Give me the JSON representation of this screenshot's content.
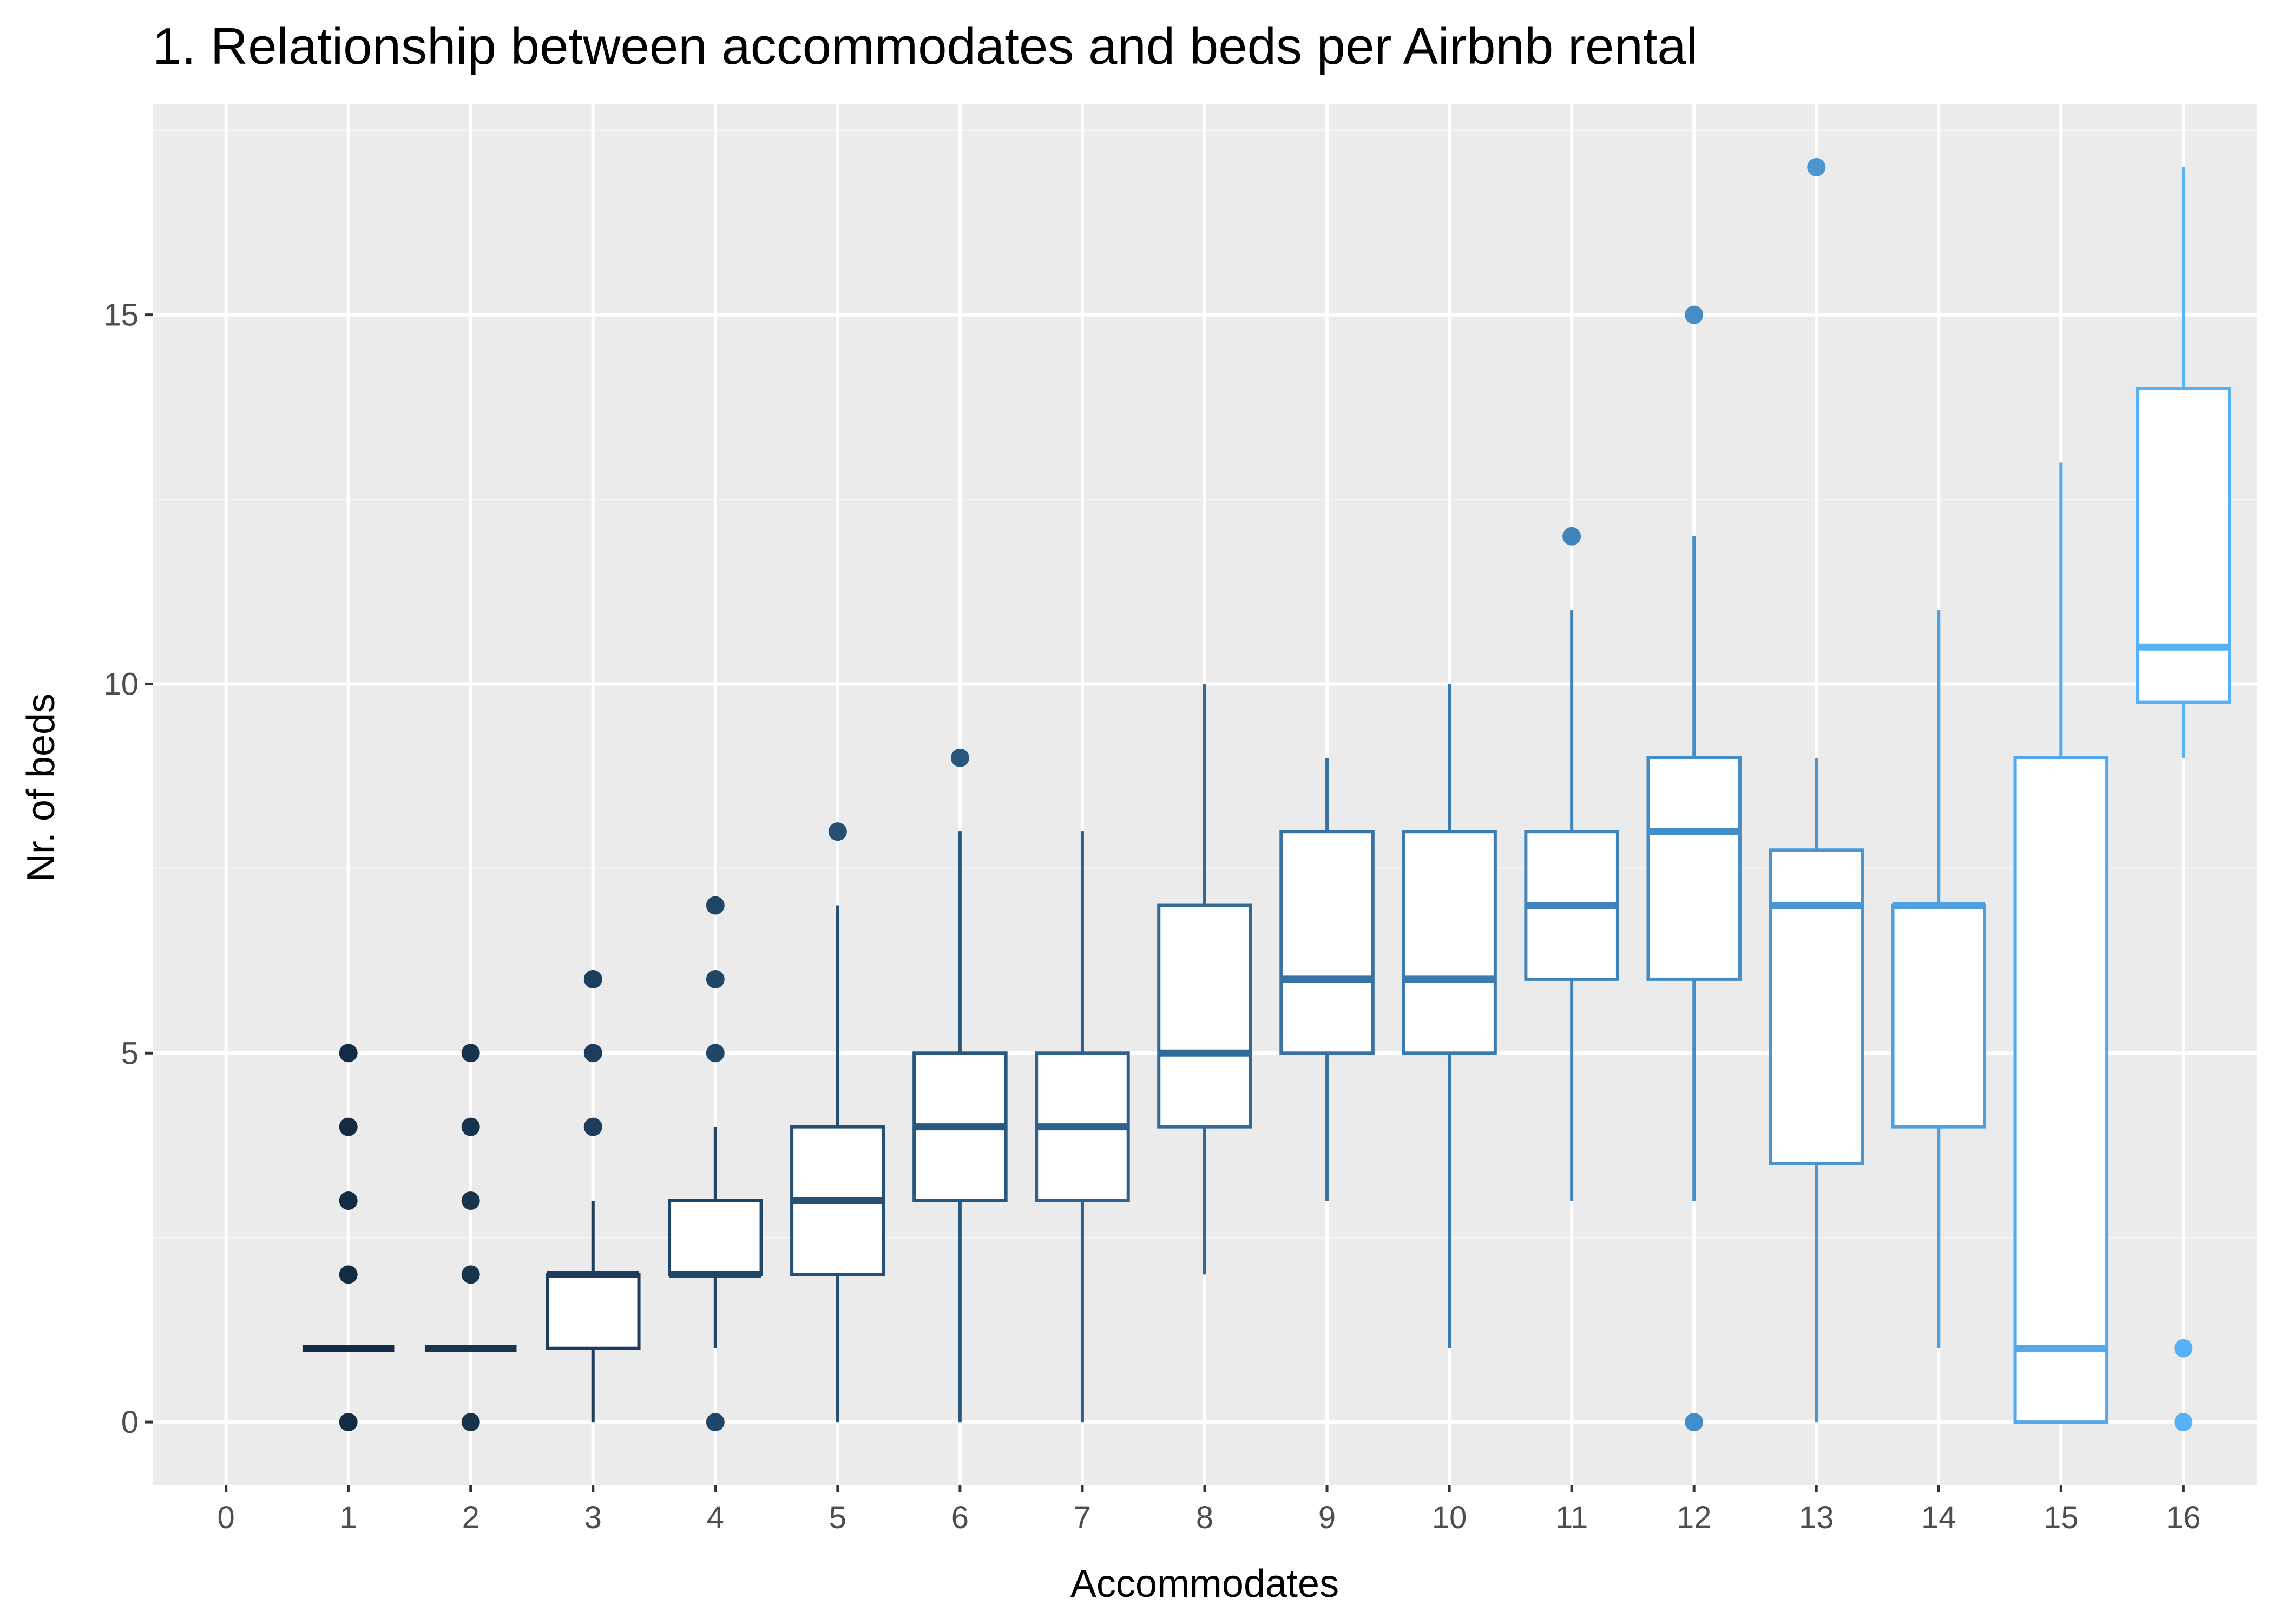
{
  "chart_data": {
    "type": "boxplot",
    "title": "1. Relationship between accommodates and beds per Airbnb rental",
    "xlabel": "Accommodates",
    "ylabel": "Nr. of beds",
    "xlim": [
      -0.6,
      16.6
    ],
    "ylim": [
      -0.85,
      17.85
    ],
    "x_ticks": [
      0,
      1,
      2,
      3,
      4,
      5,
      6,
      7,
      8,
      9,
      10,
      11,
      12,
      13,
      14,
      15,
      16
    ],
    "y_ticks": [
      0,
      5,
      10,
      15
    ],
    "y_minor_ticks": [
      2.5,
      7.5,
      12.5,
      17.5
    ],
    "grid": true,
    "legend": "none",
    "colors": {
      "panel_background": "#ebebeb",
      "grid_major": "#ffffff",
      "grid_minor": "#f5f5f5",
      "box_fill": "#ffffff",
      "color_low": "#132b43",
      "color_high": "#56b1f7"
    },
    "boxes": [
      {
        "x": 1,
        "q1": 1,
        "median": 1,
        "q3": 1,
        "lower": 1,
        "upper": 1,
        "outliers": [
          0,
          2,
          3,
          4,
          5
        ]
      },
      {
        "x": 2,
        "q1": 1,
        "median": 1,
        "q3": 1,
        "lower": 1,
        "upper": 1,
        "outliers": [
          0,
          2,
          3,
          4,
          5
        ]
      },
      {
        "x": 3,
        "q1": 1,
        "median": 2,
        "q3": 2,
        "lower": 0,
        "upper": 3,
        "outliers": [
          4,
          5,
          6
        ]
      },
      {
        "x": 4,
        "q1": 2,
        "median": 2,
        "q3": 3,
        "lower": 1,
        "upper": 4,
        "outliers": [
          0,
          5,
          6,
          7
        ]
      },
      {
        "x": 5,
        "q1": 2,
        "median": 3,
        "q3": 4,
        "lower": 0,
        "upper": 7,
        "outliers": [
          8
        ]
      },
      {
        "x": 6,
        "q1": 3,
        "median": 4,
        "q3": 5,
        "lower": 0,
        "upper": 8,
        "outliers": [
          9
        ]
      },
      {
        "x": 7,
        "q1": 3,
        "median": 4,
        "q3": 5,
        "lower": 0,
        "upper": 8,
        "outliers": []
      },
      {
        "x": 8,
        "q1": 4,
        "median": 5,
        "q3": 7,
        "lower": 2,
        "upper": 10,
        "outliers": []
      },
      {
        "x": 9,
        "q1": 5,
        "median": 6,
        "q3": 8,
        "lower": 3,
        "upper": 9,
        "outliers": []
      },
      {
        "x": 10,
        "q1": 5,
        "median": 6,
        "q3": 8,
        "lower": 1,
        "upper": 10,
        "outliers": []
      },
      {
        "x": 11,
        "q1": 6,
        "median": 7,
        "q3": 8,
        "lower": 3,
        "upper": 11,
        "outliers": [
          12
        ]
      },
      {
        "x": 12,
        "q1": 6,
        "median": 8,
        "q3": 9,
        "lower": 3,
        "upper": 12,
        "outliers": [
          0,
          15
        ]
      },
      {
        "x": 13,
        "q1": 3.5,
        "median": 7,
        "q3": 7.75,
        "lower": 0,
        "upper": 9,
        "outliers": [
          17
        ]
      },
      {
        "x": 14,
        "q1": 4,
        "median": 7,
        "q3": 7,
        "lower": 1,
        "upper": 11,
        "outliers": []
      },
      {
        "x": 15,
        "q1": 0,
        "median": 1,
        "q3": 9,
        "lower": 0,
        "upper": 13,
        "outliers": []
      },
      {
        "x": 16,
        "q1": 9.75,
        "median": 10.5,
        "q3": 14,
        "lower": 9,
        "upper": 17,
        "outliers": [
          0,
          1
        ]
      }
    ]
  }
}
